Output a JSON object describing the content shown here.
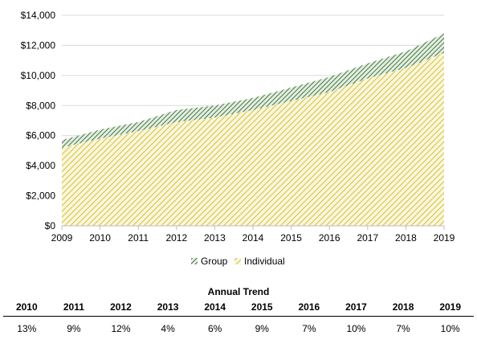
{
  "chart_data": {
    "type": "area",
    "stacked": true,
    "x": [
      "2009",
      "2010",
      "2011",
      "2012",
      "2013",
      "2014",
      "2015",
      "2016",
      "2017",
      "2018",
      "2019"
    ],
    "series": [
      {
        "name": "Individual",
        "values": [
          5200,
          5800,
          6300,
          6900,
          7200,
          7700,
          8300,
          8900,
          9800,
          10500,
          11500
        ],
        "color": "#d6c24a",
        "pattern": "diagonal-hatch"
      },
      {
        "name": "Group",
        "values": [
          500,
          600,
          600,
          800,
          800,
          800,
          900,
          1000,
          1000,
          1100,
          1300
        ],
        "color": "#2e6b2e",
        "pattern": "diagonal-hatch"
      }
    ],
    "ylim": [
      0,
      14000
    ],
    "yticks": [
      "$0",
      "$2,000",
      "$4,000",
      "$6,000",
      "$8,000",
      "$10,000",
      "$12,000",
      "$14,000"
    ],
    "ytick_values": [
      0,
      2000,
      4000,
      6000,
      8000,
      10000,
      12000,
      14000
    ],
    "grid": true,
    "legend_position": "bottom"
  },
  "trend": {
    "title": "Annual Trend",
    "years": [
      "2010",
      "2011",
      "2012",
      "2013",
      "2014",
      "2015",
      "2016",
      "2017",
      "2018",
      "2019"
    ],
    "values": [
      "13%",
      "9%",
      "12%",
      "4%",
      "6%",
      "9%",
      "7%",
      "10%",
      "7%",
      "10%"
    ]
  }
}
